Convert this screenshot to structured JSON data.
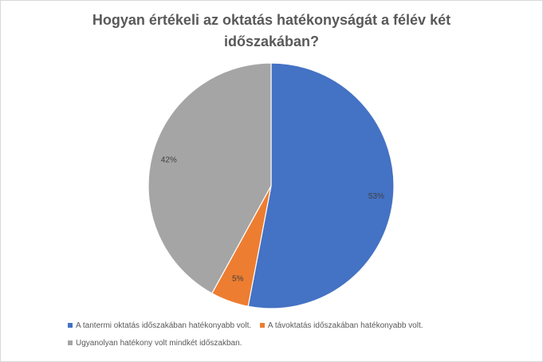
{
  "chart_data": {
    "type": "pie",
    "title": "Hogyan értékeli az oktatás  hatékonyságát  a félév két időszakában?",
    "categories": [
      "A tantermi oktatás időszakában hatékonyabb volt.",
      "A távoktatás időszakában hatékonyabb volt.",
      "Ugyanolyan hatékony volt mindkét időszakban."
    ],
    "values": [
      53,
      5,
      42
    ],
    "data_labels": [
      "53%",
      "5%",
      "42%"
    ],
    "colors": [
      "#4472c4",
      "#ed7d31",
      "#a5a5a5"
    ],
    "start_angle_deg": 0,
    "direction": "clockwise",
    "legend_position": "bottom"
  }
}
